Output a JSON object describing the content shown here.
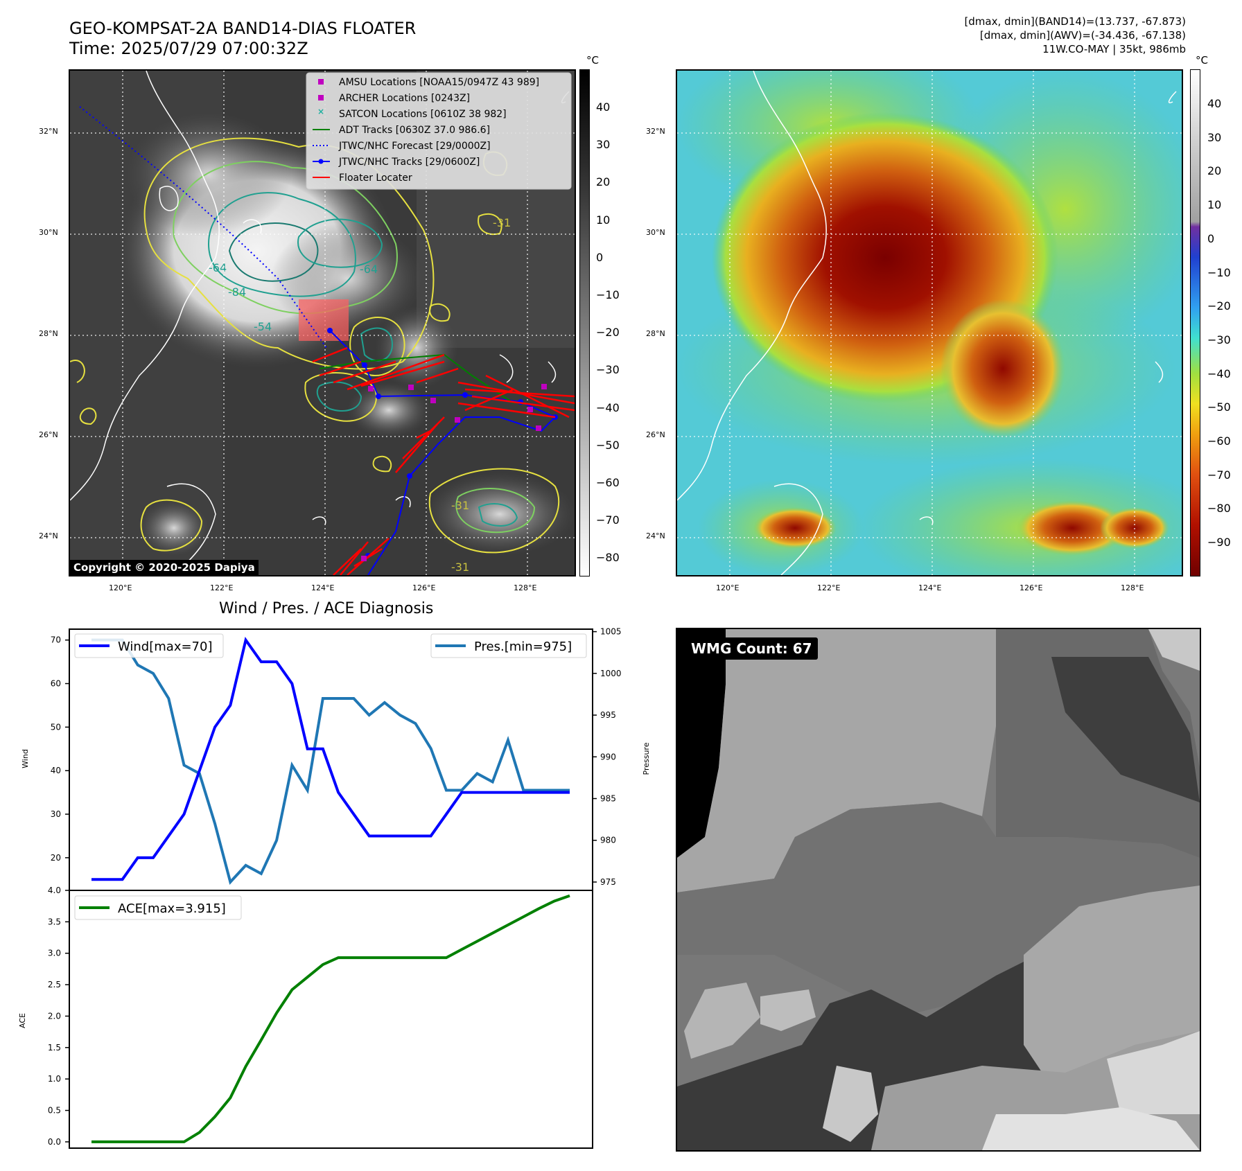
{
  "header": {
    "title_line1": "GEO-KOMPSAT-2A BAND14-DIAS FLOATER",
    "title_line2": "Time: 2025/07/29 07:00:32Z",
    "info_line1": "[dmax, dmin](BAND14)=(13.737, -67.873)",
    "info_line2": "[dmax, dmin](AWV)=(-34.436, -67.138)",
    "info_line3": "11W.CO-MAY | 35kt, 986mb"
  },
  "map_left": {
    "legend": [
      {
        "label": "AMSU Locations [NOAA15/0947Z 43 989]",
        "color": "#c000c0",
        "marker": "square"
      },
      {
        "label": "ARCHER Locations [0243Z]",
        "color": "#c000c0",
        "marker": "square"
      },
      {
        "label": "SATCON Locations [0610Z 38 982]",
        "color": "#20b0a0",
        "marker": "x"
      },
      {
        "label": "ADT Tracks [0630Z 37.0 986.6]",
        "color": "#008000",
        "marker": "line"
      },
      {
        "label": "JTWC/NHC Forecast [29/0000Z]",
        "color": "#0000ff",
        "marker": "dotted"
      },
      {
        "label": "JTWC/NHC Tracks [29/0600Z]",
        "color": "#0000ff",
        "marker": "line-dot"
      },
      {
        "label": "Floater Locater",
        "color": "#ff0000",
        "marker": "line"
      }
    ],
    "copyright": "Copyright © 2020-2025 Dapiya",
    "contour_labels": [
      "-84",
      "-64",
      "-64",
      "-54",
      "-31",
      "-31",
      "-31"
    ]
  },
  "axes": {
    "lat_labels": [
      "32°N",
      "30°N",
      "28°N",
      "26°N",
      "24°N"
    ],
    "lon_labels": [
      "120°E",
      "122°E",
      "124°E",
      "126°E",
      "128°E"
    ]
  },
  "colorbar_left": {
    "unit": "°C",
    "ticks": [
      "40",
      "30",
      "20",
      "10",
      "0",
      "−10",
      "−20",
      "−30",
      "−40",
      "−50",
      "−60",
      "−70",
      "−80"
    ]
  },
  "colorbar_right": {
    "unit": "°C",
    "ticks": [
      "40",
      "30",
      "20",
      "10",
      "0",
      "−10",
      "−20",
      "−30",
      "−40",
      "−50",
      "−60",
      "−70",
      "−80",
      "−90"
    ]
  },
  "diagnosis": {
    "title": "Wind / Pres. / ACE Diagnosis",
    "wind_legend": "Wind[max=70]",
    "pres_legend": "Pres.[min=975]",
    "ace_legend": "ACE[max=3.915]",
    "wind_ylabel": "Wind",
    "pres_ylabel": "Pressure",
    "ace_ylabel": "ACE"
  },
  "wmg": {
    "label": "WMG Count: 67"
  },
  "chart_data": [
    {
      "type": "line",
      "title": "Wind / Pres. / ACE Diagnosis",
      "x": [
        0,
        1,
        2,
        3,
        4,
        5,
        6,
        7,
        8,
        9,
        10,
        11,
        12,
        13,
        14,
        15,
        16,
        17,
        18,
        19,
        20,
        21,
        22,
        23,
        24,
        25,
        26,
        27,
        28,
        29,
        30,
        31
      ],
      "series": [
        {
          "name": "Wind[max=70]",
          "axis": "left",
          "color": "#0000ff",
          "values": [
            15,
            15,
            15,
            20,
            20,
            25,
            30,
            40,
            50,
            55,
            70,
            65,
            65,
            60,
            45,
            45,
            35,
            30,
            25,
            25,
            25,
            25,
            25,
            30,
            35,
            35,
            35,
            35,
            35,
            35,
            35,
            35
          ]
        },
        {
          "name": "Pres.[min=975]",
          "axis": "right",
          "color": "#1f77b4",
          "values": [
            1004,
            1004,
            1004,
            1001,
            1000,
            997,
            989,
            988,
            982,
            975,
            977,
            976,
            980,
            989,
            986,
            997,
            997,
            997,
            995,
            996.5,
            995,
            994,
            991,
            986,
            986,
            988,
            987,
            992,
            986,
            986,
            986,
            986
          ]
        }
      ],
      "wind_ylim": [
        12.5,
        72.5
      ],
      "wind_yticks": [
        20,
        30,
        40,
        50,
        60,
        70
      ],
      "pres_ylim": [
        974,
        1005.3
      ],
      "pres_yticks": [
        975,
        980,
        985,
        990,
        995,
        1000,
        1005
      ],
      "ylabel_left": "Wind",
      "ylabel_right": "Pressure",
      "grid": false,
      "legend": "top-left / top-right"
    },
    {
      "type": "line",
      "x": [
        0,
        1,
        2,
        3,
        4,
        5,
        6,
        7,
        8,
        9,
        10,
        11,
        12,
        13,
        14,
        15,
        16,
        17,
        18,
        19,
        20,
        21,
        22,
        23,
        24,
        25,
        26,
        27,
        28,
        29,
        30,
        31
      ],
      "series": [
        {
          "name": "ACE[max=3.915]",
          "color": "#008000",
          "values": [
            0,
            0,
            0,
            0,
            0,
            0,
            0,
            0.15,
            0.4,
            0.7,
            1.2,
            1.62,
            2.05,
            2.42,
            2.62,
            2.82,
            2.93,
            2.93,
            2.93,
            2.93,
            2.93,
            2.93,
            2.93,
            2.93,
            3.06,
            3.19,
            3.32,
            3.45,
            3.58,
            3.71,
            3.83,
            3.915
          ]
        }
      ],
      "ylim": [
        -0.1,
        4.0
      ],
      "yticks": [
        "0.0",
        "0.5",
        "1.0",
        "1.5",
        "2.0",
        "2.5",
        "3.0",
        "3.5",
        "4.0"
      ],
      "ylabel": "ACE",
      "grid": false,
      "legend": "top-left"
    }
  ]
}
